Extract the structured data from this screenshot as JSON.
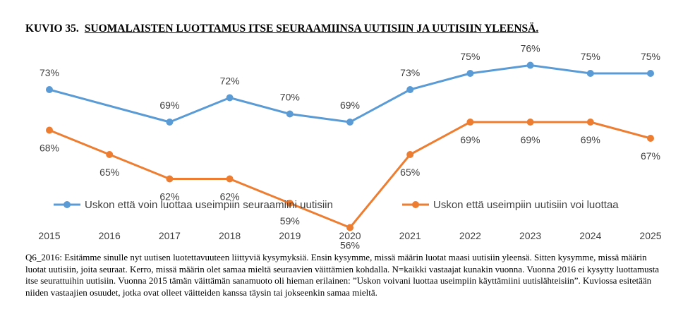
{
  "figure": {
    "number": "KUVIO 35.",
    "title": "SUOMALAISTEN LUOTTAMUS ITSE SEURAAMIINSA UUTISIIN JA UUTISIIN YLEENSÄ."
  },
  "chart_data": {
    "type": "line",
    "title": "",
    "xlabel": "",
    "ylabel": "",
    "categories": [
      "2015",
      "2016",
      "2017",
      "2018",
      "2019",
      "2020",
      "2021",
      "2022",
      "2023",
      "2024",
      "2025"
    ],
    "series": [
      {
        "name": "Uskon että voin luottaa useimpiin seuraamiini uutisiin",
        "color": "#5B9BD5",
        "values": [
          73,
          null,
          69,
          72,
          70,
          69,
          73,
          75,
          76,
          75,
          75
        ],
        "labels": [
          "73%",
          "",
          "69%",
          "72%",
          "70%",
          "69%",
          "73%",
          "75%",
          "76%",
          "75%",
          "75%"
        ]
      },
      {
        "name": "Uskon että useimpiin uutisiin voi luottaa",
        "color": "#ED7D31",
        "values": [
          68,
          65,
          62,
          62,
          59,
          56,
          65,
          69,
          69,
          69,
          67
        ],
        "labels": [
          "68%",
          "65%",
          "62%",
          "62%",
          "59%",
          "56%",
          "65%",
          "69%",
          "69%",
          "69%",
          "67%"
        ]
      }
    ],
    "grid": false,
    "legend": "bottom"
  },
  "note": "Q6_2016: Esitämme sinulle nyt uutisen luotettavuuteen liittyviä kysymyksiä. Ensin kysymme, missä määrin luotat maasi uutisiin yleensä. Sitten kysymme, missä määrin luotat uutisiin, joita seuraat. Kerro, missä määrin olet samaa mieltä seuraavien väittämien kohdalla. N=kaikki vastaajat kunakin vuonna. Vuonna 2016 ei kysytty luottamusta itse seurattuihin uutisiin. Vuonna 2015 tämän väittämän sanamuoto oli hieman erilainen: ”Uskon voivani luottaa useimpiin käyttämiini uutislähteisiin”. Kuviossa esitetään niiden vastaajien osuudet, jotka ovat olleet väitteiden kanssa täysin tai jokseenkin samaa mieltä."
}
